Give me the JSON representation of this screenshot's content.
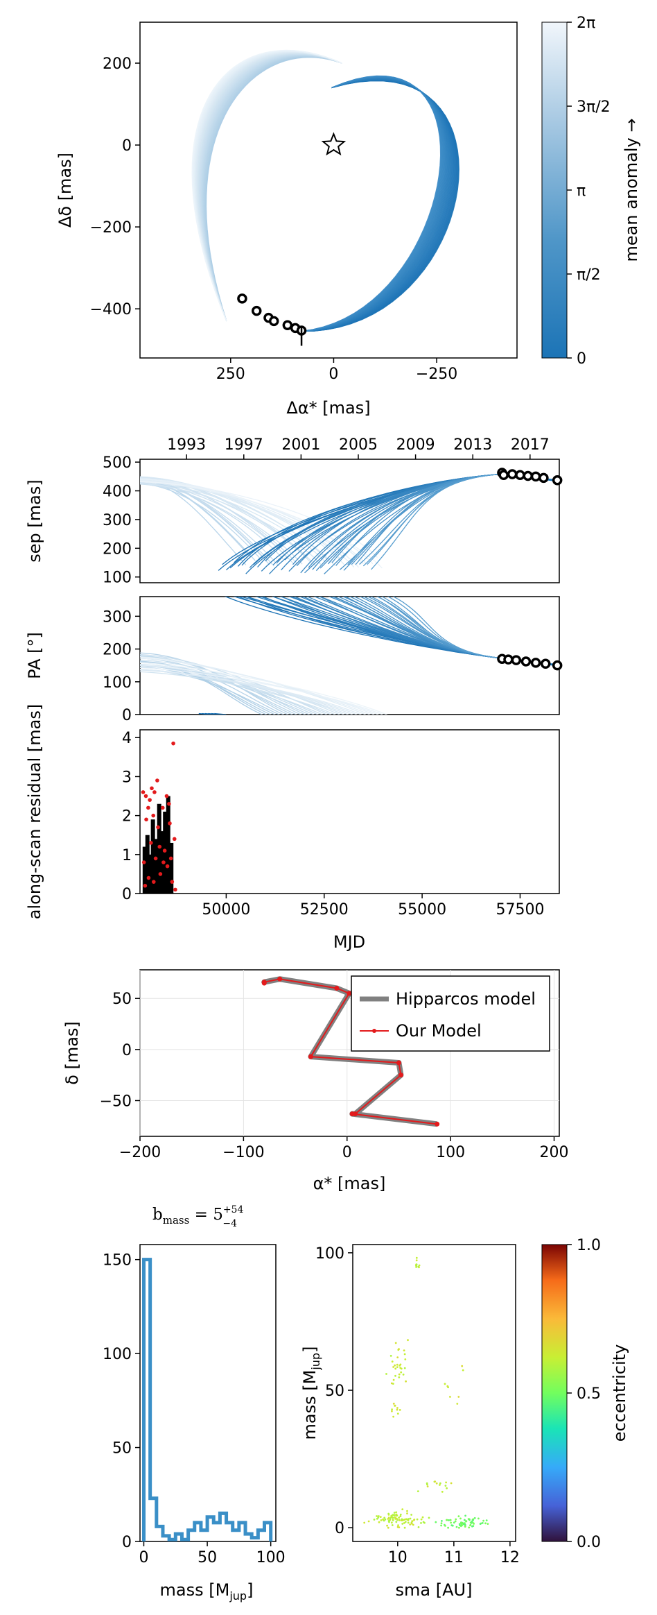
{
  "colors": {
    "orbit_blue": "#1f77b4",
    "orbit_light": "#eaf2f8",
    "marker_red": "#e31a1c",
    "hist_blue": "#3a8fc7",
    "model_gray": "#808080"
  },
  "chart_data": [
    {
      "id": "sky",
      "type": "line",
      "title": "",
      "xlabel": "Δα* [mas]",
      "ylabel": "Δδ [mas]",
      "xlim": [
        470,
        -445
      ],
      "ylim": [
        -520,
        300
      ],
      "xticks": [
        250,
        0,
        -250
      ],
      "xtick_labels": [
        "250",
        "0",
        "−250"
      ],
      "yticks": [
        200,
        0,
        -200,
        -400
      ],
      "ytick_labels": [
        "200",
        "0",
        "−200",
        "−400"
      ],
      "star_marker": [
        0,
        0
      ],
      "observations": [
        [
          222,
          -375
        ],
        [
          187,
          -405
        ],
        [
          158,
          -422
        ],
        [
          145,
          -430
        ],
        [
          112,
          -440
        ],
        [
          93,
          -447
        ],
        [
          78,
          -453
        ]
      ],
      "orbit_families": [
        {
          "name": "light",
          "n": 36,
          "start": {
            "x": 260,
            "y": -430
          },
          "ctrl1": {
            "x": 440,
            "y": 60
          },
          "ctrl2": {
            "x": 220,
            "y": 300
          },
          "end": {
            "x": -20,
            "y": 200
          }
        },
        {
          "name": "dark",
          "n": 40,
          "start": {
            "x": 5,
            "y": 140
          },
          "ctrl1": {
            "x": -440,
            "y": 300
          },
          "ctrl2": {
            "x": -330,
            "y": -440
          },
          "end": {
            "x": 80,
            "y": -455
          }
        }
      ]
    },
    {
      "id": "colorbar-anomaly",
      "type": "heatmap",
      "label": "mean anomaly →",
      "range": [
        0,
        6.283
      ],
      "ticks": [
        0,
        1.571,
        3.142,
        4.712,
        6.283
      ],
      "tick_labels": [
        "0",
        "π/2",
        "π",
        "3π/2",
        "2π"
      ]
    },
    {
      "id": "sep",
      "type": "line",
      "ylabel": "sep [mas]",
      "xlim": [
        47800,
        58500
      ],
      "ylim": [
        80,
        510
      ],
      "yticks": [
        100,
        200,
        300,
        400,
        500
      ],
      "ytick_labels": [
        "100",
        "200",
        "300",
        "400",
        "500"
      ],
      "top_axis_labels": [
        "1993",
        "1997",
        "2001",
        "2005",
        "2009",
        "2013",
        "2017"
      ],
      "top_axis_mjd": [
        48988,
        50449,
        51910,
        53371,
        54832,
        56293,
        57754
      ],
      "observations": [
        [
          57040,
          463
        ],
        [
          57080,
          455
        ],
        [
          57300,
          458
        ],
        [
          57500,
          455
        ],
        [
          57700,
          452
        ],
        [
          57900,
          450
        ],
        [
          58100,
          445
        ],
        [
          58450,
          437
        ]
      ]
    },
    {
      "id": "pa",
      "type": "line",
      "ylabel": "PA [°]",
      "xlim": [
        47800,
        58500
      ],
      "ylim": [
        0,
        360
      ],
      "yticks": [
        0,
        100,
        200,
        300
      ],
      "ytick_labels": [
        "0",
        "100",
        "200",
        "300"
      ],
      "observations": [
        [
          57040,
          170
        ],
        [
          57200,
          168
        ],
        [
          57400,
          166
        ],
        [
          57650,
          162
        ],
        [
          57900,
          158
        ],
        [
          58150,
          155
        ],
        [
          58450,
          150
        ]
      ]
    },
    {
      "id": "residual",
      "type": "bar",
      "ylabel": "along-scan residual [mas]",
      "xlabel": "MJD",
      "xlim": [
        47800,
        58500
      ],
      "ylim": [
        0,
        4.2
      ],
      "xticks": [
        50000,
        52500,
        55000,
        57500
      ],
      "xtick_labels": [
        "50000",
        "52500",
        "55000",
        "57500"
      ],
      "yticks": [
        0,
        1,
        2,
        3,
        4
      ],
      "ytick_labels": [
        "0",
        "1",
        "2",
        "3",
        "4"
      ],
      "bars": [
        {
          "x": 47920,
          "value": 1.2
        },
        {
          "x": 47990,
          "value": 1.5
        },
        {
          "x": 48060,
          "value": 1.0
        },
        {
          "x": 48130,
          "value": 1.9
        },
        {
          "x": 48210,
          "value": 1.4
        },
        {
          "x": 48290,
          "value": 2.3
        },
        {
          "x": 48360,
          "value": 1.6
        },
        {
          "x": 48440,
          "value": 2.1
        },
        {
          "x": 48520,
          "value": 2.5
        },
        {
          "x": 48600,
          "value": 1.3
        }
      ],
      "points": [
        [
          47880,
          2.6
        ],
        [
          47950,
          2.5
        ],
        [
          48010,
          2.2
        ],
        [
          48100,
          2.7
        ],
        [
          48170,
          2.6
        ],
        [
          48240,
          2.9
        ],
        [
          48480,
          2.5
        ],
        [
          48650,
          3.85
        ],
        [
          47900,
          0.8
        ],
        [
          47960,
          1.9
        ],
        [
          48020,
          0.4
        ],
        [
          48080,
          1.3
        ],
        [
          48140,
          2.0
        ],
        [
          48200,
          0.9
        ],
        [
          48260,
          1.7
        ],
        [
          48320,
          0.5
        ],
        [
          48380,
          2.2
        ],
        [
          48430,
          1.1
        ],
        [
          48500,
          0.7
        ],
        [
          48560,
          1.8
        ],
        [
          48620,
          0.3
        ],
        [
          48680,
          1.4
        ],
        [
          47930,
          0.2
        ],
        [
          48050,
          2.4
        ],
        [
          48150,
          0.3
        ],
        [
          48300,
          1.2
        ],
        [
          48400,
          0.8
        ],
        [
          48540,
          2.3
        ],
        [
          48590,
          0.9
        ],
        [
          48700,
          0.1
        ]
      ]
    },
    {
      "id": "hipparcos",
      "type": "line",
      "xlabel": "α* [mas]",
      "ylabel": "δ [mas]",
      "xlim": [
        -200,
        205
      ],
      "ylim": [
        -85,
        78
      ],
      "xticks": [
        -200,
        -100,
        0,
        100,
        200
      ],
      "xtick_labels": [
        "−200",
        "−100",
        "0",
        "100",
        "200"
      ],
      "yticks": [
        50,
        0,
        -50
      ],
      "ytick_labels": [
        "50",
        "0",
        "−50"
      ],
      "series": [
        {
          "name": "Hipparcos model",
          "x": [
            -80,
            -80,
            -65,
            -10,
            2,
            -35,
            50,
            52,
            8,
            5,
            87
          ],
          "y": [
            65,
            66,
            69,
            60,
            55,
            -7,
            -13,
            -25,
            -63,
            -63,
            -73
          ]
        },
        {
          "name": "Our Model",
          "x": [
            -80,
            -80,
            -65,
            -10,
            2,
            -35,
            50,
            52,
            8,
            5,
            87
          ],
          "y": [
            65,
            66,
            69,
            60,
            55,
            -7,
            -13,
            -25,
            -63,
            -63,
            -73
          ]
        }
      ],
      "legend": [
        "Hipparcos model",
        "Our Model"
      ],
      "legend_position": "top-right"
    },
    {
      "id": "mass-hist",
      "type": "bar",
      "title_main": "b",
      "title_sub": "mass",
      "title_eq": " = 5",
      "title_sup": "+54",
      "title_inf": "−4",
      "xlabel_main": "mass [M",
      "xlabel_sub": "jup",
      "xlabel_end": "]",
      "xlim": [
        -3,
        104
      ],
      "ylim": [
        0,
        158
      ],
      "xticks": [
        0,
        50,
        100
      ],
      "xtick_labels": [
        "0",
        "50",
        "100"
      ],
      "yticks": [
        0,
        50,
        100,
        150
      ],
      "ytick_labels": [
        "0",
        "50",
        "100",
        "150"
      ],
      "bin_edges": [
        0,
        5,
        10,
        15,
        20,
        25,
        30,
        35,
        40,
        45,
        50,
        55,
        60,
        65,
        70,
        75,
        80,
        85,
        90,
        95,
        100
      ],
      "values": [
        150,
        23,
        8,
        3,
        1,
        4,
        1,
        6,
        10,
        6,
        13,
        10,
        15,
        10,
        6,
        10,
        4,
        2,
        6,
        10
      ]
    },
    {
      "id": "mass-sma",
      "type": "scatter",
      "xlabel": "sma [AU]",
      "ylabel_main": "mass [M",
      "ylabel_sub": "jup",
      "ylabel_end": "]",
      "xlim": [
        9.2,
        12.1
      ],
      "ylim": [
        -5,
        103
      ],
      "xticks": [
        10,
        11,
        12
      ],
      "xtick_labels": [
        "10",
        "11",
        "12"
      ],
      "yticks": [
        0,
        50,
        100
      ],
      "ytick_labels": [
        "0",
        "50",
        "100"
      ],
      "clusters": [
        {
          "cx": 10.35,
          "cy": 95,
          "sx": 0.05,
          "sy": 2.5,
          "n": 10,
          "e": 0.62
        },
        {
          "cx": 10.0,
          "cy": 60,
          "sx": 0.18,
          "sy": 8,
          "n": 30,
          "e": 0.63
        },
        {
          "cx": 9.95,
          "cy": 42,
          "sx": 0.1,
          "sy": 4,
          "n": 10,
          "e": 0.64
        },
        {
          "cx": 11.0,
          "cy": 52,
          "sx": 0.2,
          "sy": 8,
          "n": 8,
          "e": 0.64
        },
        {
          "cx": 10.7,
          "cy": 16,
          "sx": 0.3,
          "sy": 3,
          "n": 14,
          "e": 0.63
        },
        {
          "cx": 10.0,
          "cy": 3,
          "sx": 0.45,
          "sy": 2.5,
          "n": 90,
          "e": 0.62
        },
        {
          "cx": 11.1,
          "cy": 2,
          "sx": 0.45,
          "sy": 2,
          "n": 70,
          "e": 0.5
        }
      ]
    },
    {
      "id": "colorbar-ecc",
      "type": "heatmap",
      "label": "eccentricity",
      "colormap": "turbo",
      "range": [
        0,
        1
      ],
      "ticks": [
        0,
        0.5,
        1.0
      ],
      "tick_labels": [
        "0.0",
        "0.5",
        "1.0"
      ]
    }
  ]
}
